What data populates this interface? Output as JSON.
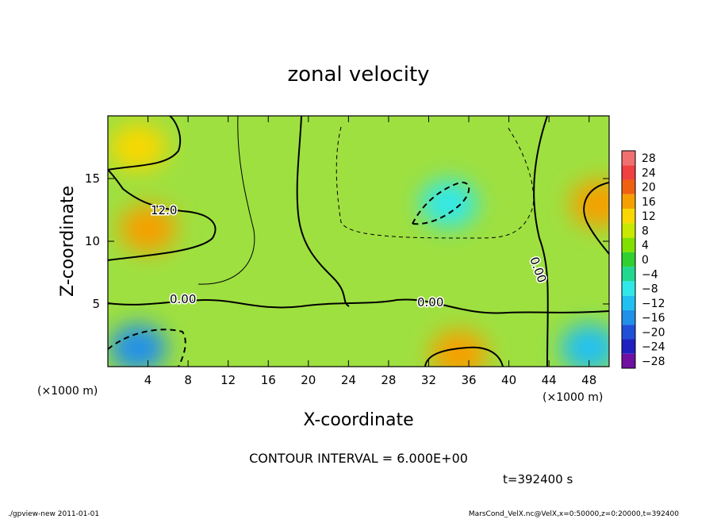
{
  "chart_data": {
    "type": "heatmap",
    "title": "zonal velocity",
    "xlabel": "X-coordinate",
    "ylabel": "Z-coordinate",
    "x_unit_left": "(×1000 m)",
    "x_unit_right": "(×1000 m)",
    "xlim": [
      0,
      50
    ],
    "ylim": [
      0,
      20
    ],
    "x_ticks": [
      "4",
      "8",
      "12",
      "16",
      "20",
      "24",
      "28",
      "32",
      "36",
      "40",
      "44",
      "48"
    ],
    "x_tick_values": [
      4,
      8,
      12,
      16,
      20,
      24,
      28,
      32,
      36,
      40,
      44,
      48
    ],
    "y_ticks": [
      "5",
      "10",
      "15"
    ],
    "y_tick_values": [
      5,
      10,
      15
    ],
    "colorbar": {
      "labels": [
        "28",
        "24",
        "20",
        "16",
        "12",
        "8",
        "4",
        "0",
        "−4",
        "−8",
        "−12",
        "−16",
        "−20",
        "−24",
        "−28"
      ],
      "levels": [
        28,
        24,
        20,
        16,
        12,
        8,
        4,
        0,
        -4,
        -8,
        -12,
        -16,
        -20,
        -24,
        -28
      ],
      "colors": [
        "#f07070",
        "#f04040",
        "#f06010",
        "#f5a000",
        "#f8d800",
        "#c8e800",
        "#80e000",
        "#30d030",
        "#20d890",
        "#30e8e8",
        "#20c0f0",
        "#2090e8",
        "#2050d8",
        "#2020c0",
        "#7010a0"
      ]
    },
    "contour_labels": [
      "12.0",
      "0.00",
      "0.00",
      "0.00"
    ],
    "contour_interval_text": "CONTOUR INTERVAL = 6.000E+00",
    "time_text": "t=392400  s",
    "field_regions": [
      {
        "name": "warm-upper-left",
        "x": 4,
        "z": 11,
        "value": 14
      },
      {
        "name": "warm-upper-left-top",
        "x": 3,
        "z": 17.5,
        "value": 12
      },
      {
        "name": "cold-upper-center",
        "x": 34,
        "z": 13,
        "value": -10
      },
      {
        "name": "cold-lower-left",
        "x": 3,
        "z": 1.5,
        "value": -16
      },
      {
        "name": "warm-lower-center",
        "x": 35,
        "z": 1,
        "value": 14
      },
      {
        "name": "warm-right-edge",
        "x": 49,
        "z": 13,
        "value": 14
      },
      {
        "name": "cold-lower-right",
        "x": 48,
        "z": 1.5,
        "value": -12
      }
    ]
  },
  "footer": {
    "left": "./gpview-new   2011-01-01",
    "right": "MarsCond_VelX.nc@VelX,x=0:50000,z=0:20000,t=392400"
  }
}
